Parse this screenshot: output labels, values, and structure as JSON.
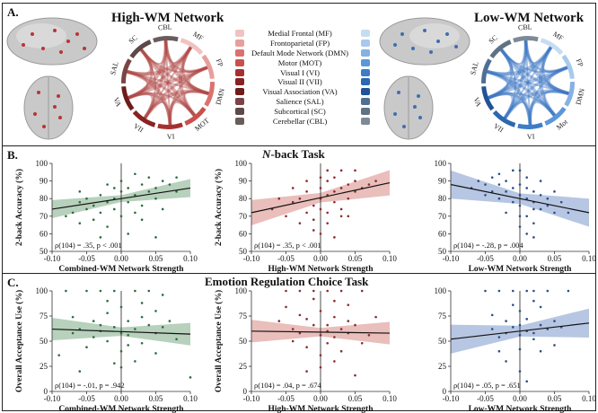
{
  "panel_a": {
    "letter": "A.",
    "high_title": "High-WM Network",
    "low_title": "Low-WM Network",
    "legend": [
      {
        "label": "Medial Frontal (MF)",
        "high_color": "#f2c2c0",
        "low_color": "#c6dcf2"
      },
      {
        "label": "Frontoparietal (FP)",
        "high_color": "#e79f9c",
        "low_color": "#a9c9ec"
      },
      {
        "label": "Default Mode Network (DMN)",
        "high_color": "#d9726f",
        "low_color": "#85b1e3"
      },
      {
        "label": "Motor (MOT)",
        "high_color": "#c9504d",
        "low_color": "#5b96d8"
      },
      {
        "label": "Visual I (VI)",
        "high_color": "#a7302e",
        "low_color": "#3d7cc8"
      },
      {
        "label": "Visual II (VII)",
        "high_color": "#882322",
        "low_color": "#2c67b2"
      },
      {
        "label": "Visual Association (VA)",
        "high_color": "#6d1d1c",
        "low_color": "#215396"
      },
      {
        "label": "Salience (SAL)",
        "high_color": "#7a4444",
        "low_color": "#4f6f94"
      },
      {
        "label": "Subcortical (SC)",
        "high_color": "#5e4848",
        "low_color": "#5f7384"
      },
      {
        "label": "Cerebellar (CBL)",
        "high_color": "#6a5c5c",
        "low_color": "#7d8a96"
      }
    ],
    "high_ring_labels": [
      "MF",
      "FP",
      "DMN",
      "MOT",
      "VI",
      "VII",
      "VA",
      "SAL",
      "SC",
      "CBL"
    ],
    "low_ring_labels": [
      "MF",
      "FP",
      "DMN",
      "Mot",
      "VI",
      "VII",
      "VA",
      "SAL",
      "SC",
      "CBL"
    ]
  },
  "panel_b": {
    "letter": "B.",
    "title_italic": "N",
    "title_rest": "-back Task"
  },
  "panel_c": {
    "letter": "C.",
    "title": "Emotion Regulation Choice Task"
  },
  "colors": {
    "green": "#2e6b3e",
    "green_band": "#9fc2a6",
    "red": "#8b2b2b",
    "red_band": "#e2a8a4",
    "blue": "#2c4f86",
    "blue_band": "#9fb3d8"
  },
  "chart_data": [
    {
      "type": "scatter",
      "id": "b1",
      "color": "green",
      "xlabel": "Combined-WM Network Strength",
      "ylabel": "2-back Accuracy (%)",
      "xlim": [
        -0.1,
        0.1
      ],
      "ylim": [
        50,
        100
      ],
      "xticks": [
        "-0.10",
        "-0.05",
        "0.00",
        "0.05",
        "0.10"
      ],
      "yticks": [
        "50",
        "60",
        "70",
        "80",
        "90",
        "100"
      ],
      "annotation": "ρ(104) = .35, p < .001",
      "fit": [
        [
          -0.105,
          74
        ],
        [
          0.105,
          86
        ]
      ],
      "band": 3.2,
      "points": [
        [
          -0.08,
          70
        ],
        [
          -0.07,
          72
        ],
        [
          -0.06,
          78
        ],
        [
          -0.06,
          66
        ],
        [
          -0.05,
          74
        ],
        [
          -0.05,
          80
        ],
        [
          -0.04,
          68
        ],
        [
          -0.04,
          76
        ],
        [
          -0.03,
          82
        ],
        [
          -0.03,
          72
        ],
        [
          -0.02,
          78
        ],
        [
          -0.02,
          64
        ],
        [
          -0.01,
          80
        ],
        [
          -0.01,
          74
        ],
        [
          0.0,
          84
        ],
        [
          0.0,
          70
        ],
        [
          0.0,
          90
        ],
        [
          0.01,
          78
        ],
        [
          0.01,
          86
        ],
        [
          0.02,
          82
        ],
        [
          0.02,
          72
        ],
        [
          0.03,
          88
        ],
        [
          0.03,
          76
        ],
        [
          0.04,
          84
        ],
        [
          0.04,
          92
        ],
        [
          0.05,
          80
        ],
        [
          0.05,
          86
        ],
        [
          0.06,
          90
        ],
        [
          0.06,
          74
        ],
        [
          0.07,
          88
        ],
        [
          0.08,
          84
        ],
        [
          -0.02,
          88
        ],
        [
          0.02,
          94
        ],
        [
          0.01,
          60
        ],
        [
          -0.03,
          58
        ],
        [
          0.05,
          58
        ],
        [
          0.08,
          92
        ],
        [
          -0.06,
          84
        ],
        [
          0.03,
          68
        ],
        [
          -0.01,
          86
        ]
      ]
    },
    {
      "type": "scatter",
      "id": "b2",
      "color": "red",
      "xlabel": "High-WM Network Strength",
      "ylabel": "2-back Accuracy (%)",
      "xlim": [
        -0.1,
        0.1
      ],
      "ylim": [
        50,
        100
      ],
      "xticks": [
        "-0.10",
        "-0.05",
        "0.00",
        "0.05",
        "0.10"
      ],
      "yticks": [
        "50",
        "60",
        "70",
        "80",
        "90",
        "100"
      ],
      "annotation": "ρ(104) = .35, p < .001",
      "fit": [
        [
          -0.105,
          72
        ],
        [
          0.105,
          89
        ]
      ],
      "band": 4.5,
      "points": [
        [
          -0.07,
          74
        ],
        [
          -0.05,
          70
        ],
        [
          -0.04,
          78
        ],
        [
          -0.03,
          66
        ],
        [
          -0.03,
          80
        ],
        [
          -0.02,
          72
        ],
        [
          -0.02,
          84
        ],
        [
          -0.01,
          76
        ],
        [
          -0.01,
          68
        ],
        [
          0.0,
          80
        ],
        [
          0.0,
          86
        ],
        [
          0.0,
          74
        ],
        [
          0.01,
          82
        ],
        [
          0.01,
          90
        ],
        [
          0.01,
          72
        ],
        [
          0.02,
          84
        ],
        [
          0.02,
          78
        ],
        [
          0.02,
          92
        ],
        [
          0.03,
          86
        ],
        [
          0.03,
          74
        ],
        [
          0.04,
          88
        ],
        [
          0.04,
          80
        ],
        [
          0.05,
          90
        ],
        [
          0.05,
          84
        ],
        [
          0.06,
          86
        ],
        [
          0.07,
          88
        ],
        [
          -0.01,
          62
        ],
        [
          0.0,
          60
        ],
        [
          0.02,
          58
        ],
        [
          0.01,
          96
        ],
        [
          0.03,
          96
        ],
        [
          -0.04,
          86
        ],
        [
          0.05,
          96
        ],
        [
          -0.02,
          90
        ],
        [
          0.04,
          70
        ],
        [
          0.08,
          90
        ],
        [
          0.0,
          92
        ],
        [
          -0.06,
          80
        ],
        [
          0.01,
          66
        ],
        [
          0.03,
          70
        ]
      ]
    },
    {
      "type": "scatter",
      "id": "b3",
      "color": "blue",
      "xlabel": "Low-WM Network Strength",
      "ylabel": "",
      "xlim": [
        -0.1,
        0.1
      ],
      "ylim": [
        50,
        100
      ],
      "xticks": [
        "-0.10",
        "-0.05",
        "0.00",
        "0.05",
        "0.10"
      ],
      "yticks": [
        "50",
        "60",
        "70",
        "80",
        "90",
        "100"
      ],
      "annotation": "ρ(104) = -.28, p = .004",
      "fit": [
        [
          -0.105,
          88
        ],
        [
          0.105,
          72
        ]
      ],
      "band": 5.0,
      "points": [
        [
          -0.07,
          86
        ],
        [
          -0.06,
          90
        ],
        [
          -0.05,
          82
        ],
        [
          -0.05,
          88
        ],
        [
          -0.04,
          84
        ],
        [
          -0.04,
          92
        ],
        [
          -0.03,
          80
        ],
        [
          -0.03,
          88
        ],
        [
          -0.02,
          84
        ],
        [
          -0.02,
          90
        ],
        [
          -0.01,
          78
        ],
        [
          -0.01,
          86
        ],
        [
          0.0,
          82
        ],
        [
          0.0,
          88
        ],
        [
          0.0,
          76
        ],
        [
          0.01,
          80
        ],
        [
          0.01,
          86
        ],
        [
          0.01,
          70
        ],
        [
          0.02,
          78
        ],
        [
          0.02,
          84
        ],
        [
          0.03,
          74
        ],
        [
          0.03,
          82
        ],
        [
          0.04,
          76
        ],
        [
          0.04,
          80
        ],
        [
          0.05,
          72
        ],
        [
          0.06,
          78
        ],
        [
          0.0,
          64
        ],
        [
          0.01,
          60
        ],
        [
          0.02,
          58
        ],
        [
          -0.01,
          96
        ],
        [
          0.0,
          96
        ],
        [
          0.02,
          66
        ],
        [
          0.03,
          90
        ],
        [
          -0.02,
          72
        ],
        [
          0.05,
          84
        ],
        [
          0.07,
          72
        ],
        [
          0.01,
          92
        ],
        [
          -0.03,
          94
        ],
        [
          0.02,
          74
        ],
        [
          0.0,
          70
        ]
      ]
    },
    {
      "type": "scatter",
      "id": "c1",
      "color": "green",
      "xlabel": "Combined-WM Network Strength",
      "ylabel": "Overall Acceptance Use (%)",
      "xlim": [
        -0.1,
        0.1
      ],
      "ylim": [
        0,
        100
      ],
      "xticks": [
        "-0.10",
        "-0.05",
        "0.00",
        "0.05",
        "0.10"
      ],
      "yticks": [
        "0",
        "25",
        "50",
        "75",
        "100"
      ],
      "annotation": "ρ(104) = -.01, p = .942",
      "fit": [
        [
          -0.105,
          62
        ],
        [
          0.105,
          57
        ]
      ],
      "band": 7,
      "points": [
        [
          -0.08,
          100
        ],
        [
          -0.07,
          58
        ],
        [
          -0.06,
          62
        ],
        [
          -0.05,
          100
        ],
        [
          -0.05,
          44
        ],
        [
          -0.04,
          70
        ],
        [
          -0.04,
          54
        ],
        [
          -0.03,
          100
        ],
        [
          -0.03,
          60
        ],
        [
          -0.02,
          78
        ],
        [
          -0.02,
          50
        ],
        [
          -0.01,
          64
        ],
        [
          -0.01,
          100
        ],
        [
          0.0,
          58
        ],
        [
          0.0,
          84
        ],
        [
          0.0,
          40
        ],
        [
          0.01,
          70
        ],
        [
          0.01,
          56
        ],
        [
          0.02,
          100
        ],
        [
          0.02,
          62
        ],
        [
          0.03,
          74
        ],
        [
          0.03,
          48
        ],
        [
          0.04,
          66
        ],
        [
          0.04,
          100
        ],
        [
          0.05,
          58
        ],
        [
          0.05,
          80
        ],
        [
          0.06,
          64
        ],
        [
          0.07,
          70
        ],
        [
          0.08,
          52
        ],
        [
          0.1,
          14
        ],
        [
          -0.09,
          36
        ],
        [
          -0.06,
          20
        ],
        [
          0.0,
          24
        ],
        [
          0.02,
          30
        ],
        [
          -0.02,
          90
        ],
        [
          0.03,
          88
        ],
        [
          0.06,
          96
        ],
        [
          -0.07,
          74
        ],
        [
          0.01,
          46
        ],
        [
          -0.03,
          66
        ],
        [
          0.05,
          38
        ],
        [
          -0.01,
          28
        ]
      ]
    },
    {
      "type": "scatter",
      "id": "c2",
      "color": "red",
      "xlabel": "High-WM Network Strength",
      "ylabel": "Overall Acceptance Use (%)",
      "xlim": [
        -0.1,
        0.1
      ],
      "ylim": [
        0,
        100
      ],
      "xticks": [
        "-0.10",
        "-0.05",
        "0.00",
        "0.05",
        "0.10"
      ],
      "yticks": [
        "0",
        "25",
        "50",
        "75",
        "100"
      ],
      "annotation": "ρ(104) = .04, p = .674",
      "fit": [
        [
          -0.105,
          60
        ],
        [
          0.105,
          58
        ]
      ],
      "band": 7,
      "points": [
        [
          -0.06,
          70
        ],
        [
          -0.05,
          100
        ],
        [
          -0.04,
          62
        ],
        [
          -0.04,
          50
        ],
        [
          -0.03,
          100
        ],
        [
          -0.03,
          58
        ],
        [
          -0.02,
          72
        ],
        [
          -0.02,
          44
        ],
        [
          -0.01,
          66
        ],
        [
          -0.01,
          100
        ],
        [
          0.0,
          56
        ],
        [
          0.0,
          80
        ],
        [
          0.0,
          36
        ],
        [
          0.01,
          60
        ],
        [
          0.01,
          100
        ],
        [
          0.01,
          48
        ],
        [
          0.02,
          74
        ],
        [
          0.02,
          54
        ],
        [
          0.03,
          62
        ],
        [
          0.03,
          100
        ],
        [
          0.04,
          58
        ],
        [
          0.04,
          86
        ],
        [
          0.05,
          66
        ],
        [
          0.06,
          100
        ],
        [
          0.07,
          56
        ],
        [
          0.08,
          74
        ],
        [
          -0.02,
          20
        ],
        [
          0.0,
          24
        ],
        [
          0.02,
          30
        ],
        [
          0.05,
          16
        ],
        [
          -0.05,
          84
        ],
        [
          -0.01,
          92
        ],
        [
          0.03,
          40
        ],
        [
          0.04,
          70
        ],
        [
          0.02,
          90
        ],
        [
          -0.03,
          76
        ],
        [
          0.01,
          66
        ],
        [
          0.06,
          48
        ]
      ]
    },
    {
      "type": "scatter",
      "id": "c3",
      "color": "blue",
      "xlabel": "Low-WM Network Strength",
      "ylabel": "",
      "xlim": [
        -0.1,
        0.1
      ],
      "ylim": [
        0,
        100
      ],
      "xticks": [
        "-0.10",
        "-0.05",
        "0.00",
        "0.05",
        "0.10"
      ],
      "yticks": [
        "0",
        "25",
        "50",
        "75",
        "100"
      ],
      "annotation": "ρ(104) = .05, p = .651",
      "fit": [
        [
          -0.105,
          52
        ],
        [
          0.105,
          68
        ]
      ],
      "band": 9,
      "points": [
        [
          -0.05,
          100
        ],
        [
          -0.04,
          62
        ],
        [
          -0.03,
          100
        ],
        [
          -0.03,
          54
        ],
        [
          -0.02,
          70
        ],
        [
          -0.02,
          58
        ],
        [
          -0.01,
          100
        ],
        [
          -0.01,
          64
        ],
        [
          0.0,
          56
        ],
        [
          0.0,
          80
        ],
        [
          0.0,
          42
        ],
        [
          0.01,
          100
        ],
        [
          0.01,
          60
        ],
        [
          0.01,
          72
        ],
        [
          0.02,
          58
        ],
        [
          0.02,
          100
        ],
        [
          0.03,
          66
        ],
        [
          0.03,
          84
        ],
        [
          0.04,
          62
        ],
        [
          0.04,
          100
        ],
        [
          0.05,
          70
        ],
        [
          0.06,
          64
        ],
        [
          -0.02,
          30
        ],
        [
          0.0,
          20
        ],
        [
          0.01,
          10
        ],
        [
          0.03,
          40
        ],
        [
          -0.01,
          86
        ],
        [
          0.02,
          90
        ],
        [
          0.05,
          46
        ],
        [
          0.07,
          100
        ],
        [
          -0.04,
          76
        ],
        [
          0.0,
          66
        ],
        [
          0.02,
          52
        ],
        [
          -0.03,
          40
        ]
      ]
    }
  ]
}
